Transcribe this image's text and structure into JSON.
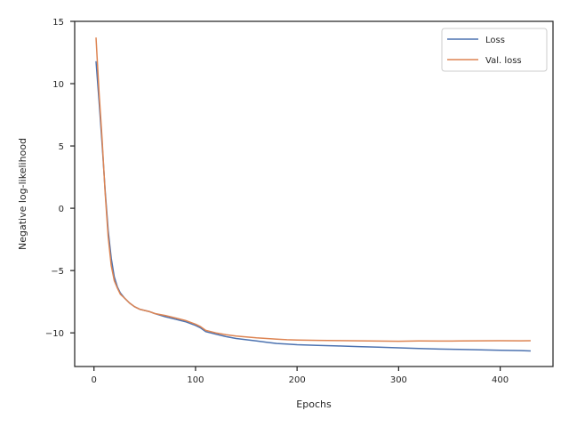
{
  "chart_data": {
    "type": "line",
    "xlabel": "Epochs",
    "ylabel": "Negative log-likelihood",
    "xlim": [
      -19,
      452
    ],
    "ylim": [
      -12.7,
      15
    ],
    "xticks": [
      0,
      100,
      200,
      300,
      400
    ],
    "yticks": [
      -10,
      -5,
      0,
      5,
      10,
      15
    ],
    "grid": false,
    "legend_position": "top-right",
    "series": [
      {
        "name": "Loss",
        "color": "#4c72b0",
        "x": [
          2,
          5,
          8,
          11,
          14,
          17,
          20,
          23,
          26,
          30,
          35,
          40,
          45,
          50,
          55,
          60,
          70,
          80,
          90,
          100,
          105,
          110,
          120,
          130,
          140,
          150,
          160,
          170,
          180,
          190,
          200,
          220,
          240,
          260,
          280,
          300,
          320,
          340,
          360,
          380,
          400,
          420,
          430
        ],
        "y": [
          11.8,
          8.6,
          5.2,
          1.4,
          -1.8,
          -4.0,
          -5.5,
          -6.3,
          -6.8,
          -7.2,
          -7.6,
          -7.9,
          -8.1,
          -8.2,
          -8.3,
          -8.45,
          -8.7,
          -8.9,
          -9.1,
          -9.4,
          -9.6,
          -9.9,
          -10.1,
          -10.3,
          -10.45,
          -10.55,
          -10.65,
          -10.75,
          -10.85,
          -10.9,
          -10.95,
          -11.0,
          -11.05,
          -11.1,
          -11.15,
          -11.2,
          -11.25,
          -11.3,
          -11.33,
          -11.36,
          -11.4,
          -11.42,
          -11.45
        ]
      },
      {
        "name": "Val. loss",
        "color": "#dd8452",
        "x": [
          2,
          5,
          8,
          11,
          14,
          17,
          20,
          23,
          26,
          30,
          35,
          40,
          45,
          50,
          55,
          60,
          70,
          80,
          90,
          100,
          105,
          110,
          120,
          130,
          140,
          150,
          160,
          170,
          180,
          190,
          200,
          220,
          240,
          260,
          280,
          300,
          320,
          340,
          360,
          380,
          400,
          420,
          430
        ],
        "y": [
          13.7,
          9.3,
          5.6,
          1.2,
          -2.3,
          -4.6,
          -5.8,
          -6.4,
          -6.9,
          -7.2,
          -7.6,
          -7.9,
          -8.1,
          -8.2,
          -8.3,
          -8.45,
          -8.6,
          -8.8,
          -9.0,
          -9.3,
          -9.5,
          -9.8,
          -10.0,
          -10.15,
          -10.25,
          -10.33,
          -10.4,
          -10.45,
          -10.5,
          -10.55,
          -10.57,
          -10.6,
          -10.62,
          -10.64,
          -10.66,
          -10.67,
          -10.65,
          -10.66,
          -10.65,
          -10.64,
          -10.63,
          -10.64,
          -10.63
        ]
      }
    ]
  }
}
